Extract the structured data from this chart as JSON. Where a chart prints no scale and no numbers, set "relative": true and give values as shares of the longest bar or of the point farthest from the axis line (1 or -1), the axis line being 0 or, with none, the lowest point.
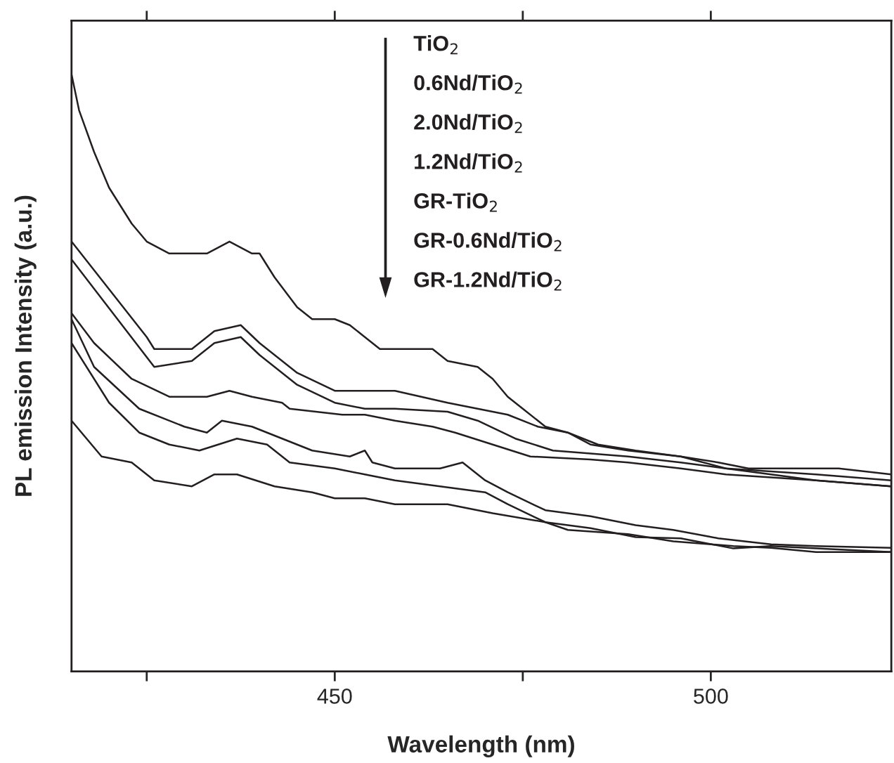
{
  "chart_data": {
    "type": "line",
    "relative": true,
    "xlabel": "Wavelength (nm)",
    "ylabel": "PL emission Intensity (a.u.)",
    "xlim": [
      415,
      524
    ],
    "xticks": [
      {
        "value": 425,
        "label": null
      },
      450,
      {
        "value": 475,
        "label": null
      },
      500
    ],
    "grid": false,
    "marker": "none",
    "line_style": "solid",
    "annotations": [
      "TiO$_{2}$",
      "0.6Nd/TiO$_{2}$",
      "2.0Nd/TiO$_{2}$",
      "1.2Nd/TiO$_{2}$",
      "GR-TiO$_{2}$",
      "GR-0.6Nd/TiO$_{2}$",
      "GR-1.2Nd/TiO$_{2}$"
    ],
    "series": [
      {
        "color": "#231f20",
        "x": [
          415,
          416,
          418,
          420,
          423,
          425,
          428,
          430,
          433,
          436,
          439,
          440,
          442,
          445,
          447,
          450,
          452,
          454,
          456,
          460,
          463,
          465,
          469,
          471,
          473,
          475,
          478,
          481,
          485,
          490,
          496,
          501,
          505,
          511,
          517,
          524
        ],
        "values": [
          1.0,
          0.94,
          0.87,
          0.81,
          0.75,
          0.72,
          0.7,
          0.7,
          0.7,
          0.72,
          0.7,
          0.7,
          0.66,
          0.61,
          0.59,
          0.59,
          0.58,
          0.56,
          0.54,
          0.54,
          0.54,
          0.52,
          0.51,
          0.49,
          0.46,
          0.44,
          0.41,
          0.4,
          0.38,
          0.37,
          0.36,
          0.35,
          0.34,
          0.34,
          0.34,
          0.33
        ]
      },
      {
        "color": "#231f20",
        "x": [
          415,
          425,
          426,
          431,
          434,
          437.5,
          440,
          445,
          450,
          454,
          458,
          465,
          469,
          473,
          477,
          481,
          484,
          489,
          496,
          502,
          514,
          524
        ],
        "values": [
          0.72,
          0.56,
          0.54,
          0.54,
          0.57,
          0.58,
          0.55,
          0.5,
          0.47,
          0.47,
          0.47,
          0.45,
          0.44,
          0.43,
          0.41,
          0.4,
          0.38,
          0.37,
          0.36,
          0.34,
          0.33,
          0.32
        ]
      },
      {
        "color": "#231f20",
        "x": [
          415,
          426,
          431,
          434,
          437.5,
          440,
          445,
          450,
          454,
          458,
          465,
          469,
          474,
          479,
          484,
          489,
          496,
          502,
          508,
          514,
          524
        ],
        "values": [
          0.69,
          0.51,
          0.52,
          0.55,
          0.56,
          0.53,
          0.48,
          0.45,
          0.44,
          0.44,
          0.435,
          0.42,
          0.39,
          0.37,
          0.365,
          0.36,
          0.35,
          0.34,
          0.33,
          0.32,
          0.31
        ]
      },
      {
        "color": "#231f20",
        "x": [
          415,
          418,
          423,
          428,
          433,
          436,
          439,
          443,
          444,
          451,
          454,
          458,
          463,
          466,
          471,
          476,
          484,
          489,
          496,
          502,
          508,
          514,
          524
        ],
        "values": [
          0.6,
          0.55,
          0.49,
          0.46,
          0.46,
          0.47,
          0.46,
          0.45,
          0.44,
          0.43,
          0.43,
          0.42,
          0.41,
          0.4,
          0.38,
          0.36,
          0.355,
          0.35,
          0.34,
          0.33,
          0.325,
          0.32,
          0.31
        ]
      },
      {
        "color": "#231f20",
        "x": [
          415,
          418,
          424,
          430,
          433,
          435,
          439,
          443,
          447,
          452,
          454,
          455,
          458,
          464,
          467,
          470,
          473,
          478,
          484,
          490,
          495,
          501,
          508,
          514,
          524
        ],
        "values": [
          0.59,
          0.51,
          0.44,
          0.41,
          0.4,
          0.42,
          0.41,
          0.39,
          0.37,
          0.36,
          0.37,
          0.35,
          0.34,
          0.34,
          0.35,
          0.32,
          0.3,
          0.27,
          0.26,
          0.245,
          0.237,
          0.223,
          0.213,
          0.21,
          0.207
        ]
      },
      {
        "color": "#231f20",
        "x": [
          415,
          420,
          424,
          428,
          432,
          437,
          441,
          444,
          450,
          454,
          458,
          464,
          470,
          473,
          478,
          484,
          490,
          496,
          503,
          508,
          514,
          524
        ],
        "values": [
          0.55,
          0.45,
          0.4,
          0.38,
          0.37,
          0.39,
          0.38,
          0.35,
          0.34,
          0.33,
          0.32,
          0.31,
          0.3,
          0.28,
          0.25,
          0.24,
          0.225,
          0.223,
          0.206,
          0.21,
          0.206,
          0.2
        ]
      },
      {
        "color": "#231f20",
        "x": [
          415,
          419,
          423,
          426,
          431,
          434,
          437,
          442,
          447,
          450,
          454,
          458,
          465,
          471,
          478,
          481,
          489,
          495,
          503,
          508,
          514,
          524
        ],
        "values": [
          0.42,
          0.36,
          0.35,
          0.32,
          0.31,
          0.33,
          0.33,
          0.31,
          0.3,
          0.29,
          0.29,
          0.28,
          0.28,
          0.265,
          0.25,
          0.237,
          0.23,
          0.218,
          0.21,
          0.207,
          0.2,
          0.2
        ]
      }
    ]
  }
}
